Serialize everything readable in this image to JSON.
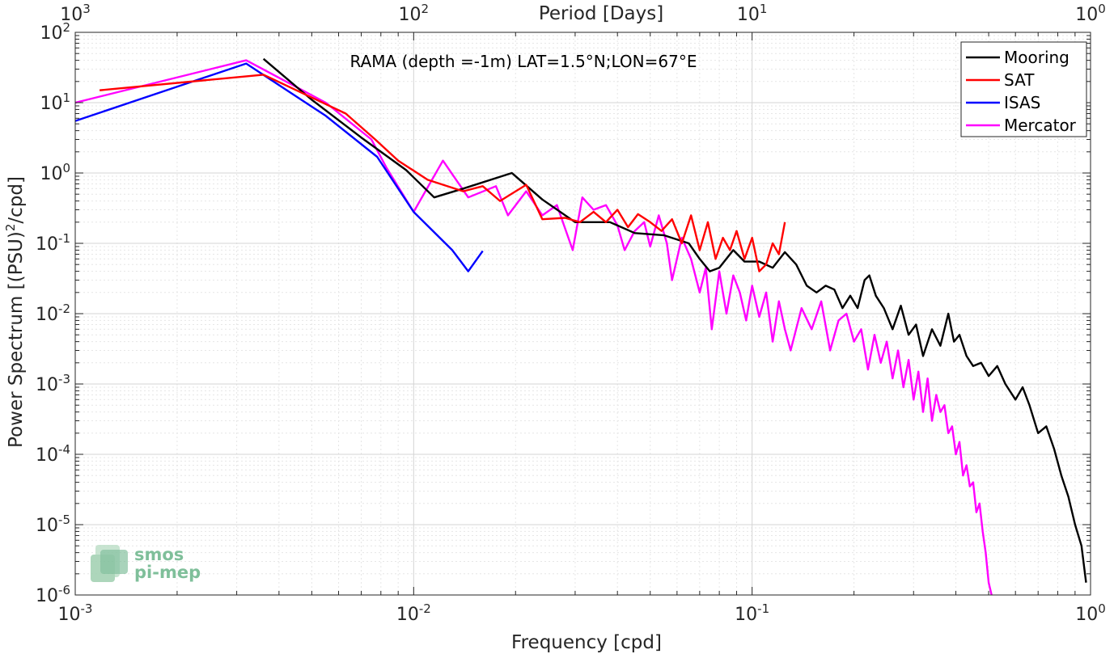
{
  "chart_data": {
    "type": "line",
    "title": "RAMA (depth =-1m) LAT=1.5°N;LON=67°E",
    "xlabel": "Frequency [cpd]",
    "ylabel_main": "Power Spectrum [(PSU)",
    "ylabel_sup": "2",
    "ylabel_tail": "/cpd]",
    "x2label": "Period [Days]",
    "xscale": "log",
    "yscale": "log",
    "xlim": [
      0.001,
      1
    ],
    "ylim": [
      1e-06,
      100
    ],
    "grid": true,
    "legend_position": "top-right",
    "x_ticks": [
      {
        "value": 0.001,
        "base": "10",
        "exp": "-3"
      },
      {
        "value": 0.01,
        "base": "10",
        "exp": "-2"
      },
      {
        "value": 0.1,
        "base": "10",
        "exp": "-1"
      },
      {
        "value": 1,
        "base": "10",
        "exp": "0"
      }
    ],
    "x2_ticks": [
      {
        "freq": 0.001,
        "base": "10",
        "exp": "3"
      },
      {
        "freq": 0.01,
        "base": "10",
        "exp": "2"
      },
      {
        "freq": 0.1,
        "base": "10",
        "exp": "1"
      },
      {
        "freq": 1,
        "base": "10",
        "exp": "0"
      }
    ],
    "y_ticks": [
      {
        "value": 1e-06,
        "base": "10",
        "exp": "-6"
      },
      {
        "value": 1e-05,
        "base": "10",
        "exp": "-5"
      },
      {
        "value": 0.0001,
        "base": "10",
        "exp": "-4"
      },
      {
        "value": 0.001,
        "base": "10",
        "exp": "-3"
      },
      {
        "value": 0.01,
        "base": "10",
        "exp": "-2"
      },
      {
        "value": 0.1,
        "base": "10",
        "exp": "-1"
      },
      {
        "value": 1,
        "base": "10",
        "exp": "0"
      },
      {
        "value": 10,
        "base": "10",
        "exp": "1"
      },
      {
        "value": 100,
        "base": "10",
        "exp": "2"
      }
    ],
    "series": [
      {
        "name": "Mooring",
        "color": "#000000",
        "points": [
          [
            0.0036,
            42
          ],
          [
            0.005,
            11
          ],
          [
            0.007,
            3.2
          ],
          [
            0.0095,
            1.1
          ],
          [
            0.0115,
            0.45
          ],
          [
            0.014,
            0.6
          ],
          [
            0.0195,
            1.0
          ],
          [
            0.024,
            0.42
          ],
          [
            0.03,
            0.2
          ],
          [
            0.038,
            0.2
          ],
          [
            0.045,
            0.14
          ],
          [
            0.055,
            0.13
          ],
          [
            0.065,
            0.1
          ],
          [
            0.07,
            0.06
          ],
          [
            0.075,
            0.04
          ],
          [
            0.08,
            0.045
          ],
          [
            0.088,
            0.08
          ],
          [
            0.095,
            0.055
          ],
          [
            0.105,
            0.055
          ],
          [
            0.115,
            0.045
          ],
          [
            0.125,
            0.075
          ],
          [
            0.135,
            0.05
          ],
          [
            0.145,
            0.025
          ],
          [
            0.155,
            0.02
          ],
          [
            0.165,
            0.025
          ],
          [
            0.175,
            0.022
          ],
          [
            0.185,
            0.012
          ],
          [
            0.195,
            0.018
          ],
          [
            0.205,
            0.012
          ],
          [
            0.215,
            0.03
          ],
          [
            0.222,
            0.035
          ],
          [
            0.232,
            0.018
          ],
          [
            0.245,
            0.012
          ],
          [
            0.26,
            0.006
          ],
          [
            0.275,
            0.013
          ],
          [
            0.29,
            0.005
          ],
          [
            0.305,
            0.007
          ],
          [
            0.32,
            0.0025
          ],
          [
            0.34,
            0.006
          ],
          [
            0.36,
            0.0035
          ],
          [
            0.38,
            0.01
          ],
          [
            0.395,
            0.004
          ],
          [
            0.41,
            0.005
          ],
          [
            0.43,
            0.0025
          ],
          [
            0.45,
            0.0018
          ],
          [
            0.475,
            0.002
          ],
          [
            0.5,
            0.0013
          ],
          [
            0.53,
            0.0018
          ],
          [
            0.56,
            0.001
          ],
          [
            0.6,
            0.0006
          ],
          [
            0.63,
            0.0009
          ],
          [
            0.66,
            0.0005
          ],
          [
            0.7,
            0.0002
          ],
          [
            0.74,
            0.00025
          ],
          [
            0.78,
            0.00012
          ],
          [
            0.82,
            5e-05
          ],
          [
            0.86,
            2.5e-05
          ],
          [
            0.9,
            1e-05
          ],
          [
            0.94,
            5e-06
          ],
          [
            0.97,
            1.5e-06
          ]
        ]
      },
      {
        "name": "SAT",
        "color": "#ff0000",
        "points": [
          [
            0.00118,
            15
          ],
          [
            0.0036,
            25
          ],
          [
            0.0063,
            7
          ],
          [
            0.0077,
            3
          ],
          [
            0.009,
            1.5
          ],
          [
            0.011,
            0.8
          ],
          [
            0.014,
            0.55
          ],
          [
            0.016,
            0.65
          ],
          [
            0.018,
            0.4
          ],
          [
            0.0215,
            0.68
          ],
          [
            0.024,
            0.22
          ],
          [
            0.028,
            0.23
          ],
          [
            0.031,
            0.2
          ],
          [
            0.034,
            0.28
          ],
          [
            0.037,
            0.2
          ],
          [
            0.04,
            0.3
          ],
          [
            0.043,
            0.17
          ],
          [
            0.046,
            0.26
          ],
          [
            0.05,
            0.2
          ],
          [
            0.054,
            0.15
          ],
          [
            0.058,
            0.22
          ],
          [
            0.062,
            0.1
          ],
          [
            0.066,
            0.25
          ],
          [
            0.07,
            0.08
          ],
          [
            0.074,
            0.2
          ],
          [
            0.078,
            0.06
          ],
          [
            0.082,
            0.12
          ],
          [
            0.086,
            0.08
          ],
          [
            0.09,
            0.15
          ],
          [
            0.095,
            0.06
          ],
          [
            0.1,
            0.12
          ],
          [
            0.105,
            0.04
          ],
          [
            0.11,
            0.05
          ],
          [
            0.115,
            0.1
          ],
          [
            0.12,
            0.07
          ],
          [
            0.125,
            0.2
          ]
        ]
      },
      {
        "name": "ISAS",
        "color": "#0000ff",
        "points": [
          [
            0.001,
            5.5
          ],
          [
            0.0032,
            36
          ],
          [
            0.0055,
            6.5
          ],
          [
            0.0078,
            1.7
          ],
          [
            0.01,
            0.28
          ],
          [
            0.013,
            0.08
          ],
          [
            0.0145,
            0.04
          ],
          [
            0.016,
            0.078
          ]
        ]
      },
      {
        "name": "Mercator",
        "color": "#ff00ff",
        "points": [
          [
            0.001,
            10
          ],
          [
            0.0032,
            40
          ],
          [
            0.0055,
            10
          ],
          [
            0.0075,
            3
          ],
          [
            0.0083,
            1.2
          ],
          [
            0.01,
            0.28
          ],
          [
            0.0122,
            1.5
          ],
          [
            0.0145,
            0.45
          ],
          [
            0.0175,
            0.65
          ],
          [
            0.019,
            0.25
          ],
          [
            0.0215,
            0.55
          ],
          [
            0.024,
            0.25
          ],
          [
            0.0265,
            0.35
          ],
          [
            0.0295,
            0.08
          ],
          [
            0.0315,
            0.45
          ],
          [
            0.034,
            0.3
          ],
          [
            0.037,
            0.35
          ],
          [
            0.04,
            0.18
          ],
          [
            0.042,
            0.08
          ],
          [
            0.045,
            0.15
          ],
          [
            0.048,
            0.2
          ],
          [
            0.05,
            0.09
          ],
          [
            0.053,
            0.25
          ],
          [
            0.056,
            0.1
          ],
          [
            0.058,
            0.03
          ],
          [
            0.062,
            0.12
          ],
          [
            0.066,
            0.06
          ],
          [
            0.07,
            0.02
          ],
          [
            0.073,
            0.045
          ],
          [
            0.076,
            0.006
          ],
          [
            0.08,
            0.04
          ],
          [
            0.084,
            0.01
          ],
          [
            0.088,
            0.035
          ],
          [
            0.092,
            0.02
          ],
          [
            0.096,
            0.008
          ],
          [
            0.1,
            0.025
          ],
          [
            0.105,
            0.009
          ],
          [
            0.11,
            0.02
          ],
          [
            0.115,
            0.004
          ],
          [
            0.12,
            0.015
          ],
          [
            0.125,
            0.006
          ],
          [
            0.13,
            0.003
          ],
          [
            0.14,
            0.012
          ],
          [
            0.15,
            0.006
          ],
          [
            0.16,
            0.015
          ],
          [
            0.17,
            0.003
          ],
          [
            0.18,
            0.008
          ],
          [
            0.19,
            0.01
          ],
          [
            0.2,
            0.004
          ],
          [
            0.21,
            0.006
          ],
          [
            0.22,
            0.0016
          ],
          [
            0.23,
            0.005
          ],
          [
            0.24,
            0.002
          ],
          [
            0.25,
            0.004
          ],
          [
            0.26,
            0.0012
          ],
          [
            0.27,
            0.003
          ],
          [
            0.28,
            0.0009
          ],
          [
            0.29,
            0.0022
          ],
          [
            0.3,
            0.0006
          ],
          [
            0.31,
            0.0015
          ],
          [
            0.32,
            0.0004
          ],
          [
            0.33,
            0.0012
          ],
          [
            0.34,
            0.0003
          ],
          [
            0.35,
            0.0007
          ],
          [
            0.36,
            0.0004
          ],
          [
            0.37,
            0.0005
          ],
          [
            0.38,
            0.0002
          ],
          [
            0.39,
            0.00025
          ],
          [
            0.4,
            0.0001
          ],
          [
            0.41,
            0.00015
          ],
          [
            0.42,
            5e-05
          ],
          [
            0.43,
            7e-05
          ],
          [
            0.44,
            3.5e-05
          ],
          [
            0.45,
            4e-05
          ],
          [
            0.46,
            1.5e-05
          ],
          [
            0.47,
            2e-05
          ],
          [
            0.48,
            8e-06
          ],
          [
            0.49,
            4e-06
          ],
          [
            0.5,
            1.5e-06
          ],
          [
            0.51,
            1e-06
          ]
        ]
      }
    ],
    "logo": {
      "line1": "smos",
      "line2": "pi-mep"
    }
  }
}
